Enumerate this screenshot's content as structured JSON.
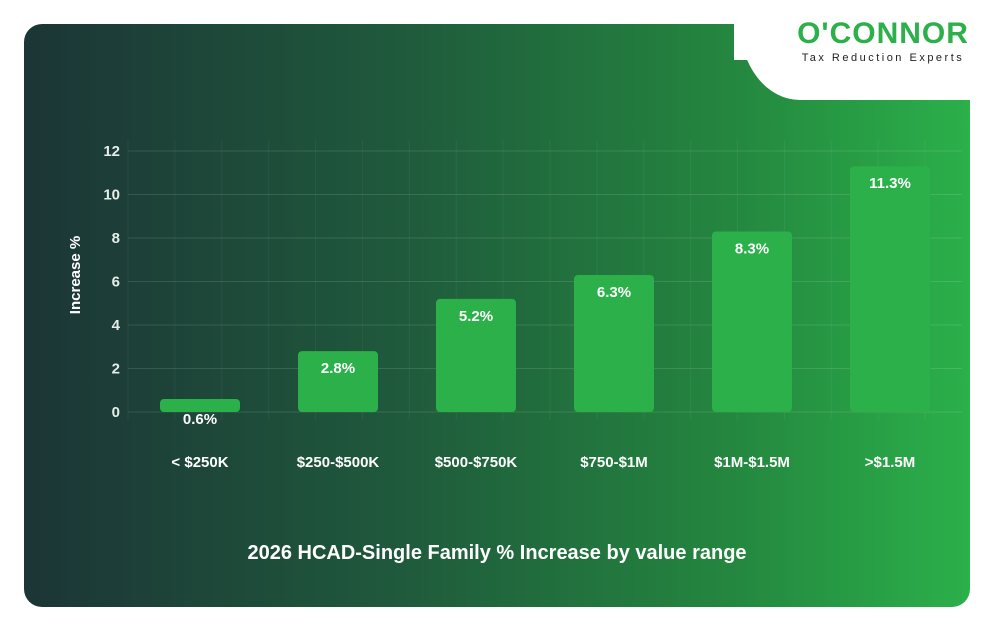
{
  "logo": {
    "brand": "O'CONNOR",
    "tagline": "Tax Reduction Experts"
  },
  "chart_data": {
    "type": "bar",
    "title": "2026 HCAD-Single Family % Increase by value range",
    "xlabel": "",
    "ylabel": "Increase %",
    "ylim": [
      0,
      12
    ],
    "yticks": [
      0,
      2,
      4,
      6,
      8,
      10,
      12
    ],
    "grid": true,
    "categories": [
      "< $250K",
      "$250-$500K",
      "$500-$750K",
      "$750-$1M",
      "$1M-$1.5M",
      ">$1.5M"
    ],
    "values": [
      0.6,
      2.8,
      5.2,
      6.3,
      8.3,
      11.3
    ],
    "data_labels": [
      "0.6%",
      "2.8%",
      "5.2%",
      "6.3%",
      "8.3%",
      "11.3%"
    ],
    "bar_color": "#2bb04a"
  }
}
